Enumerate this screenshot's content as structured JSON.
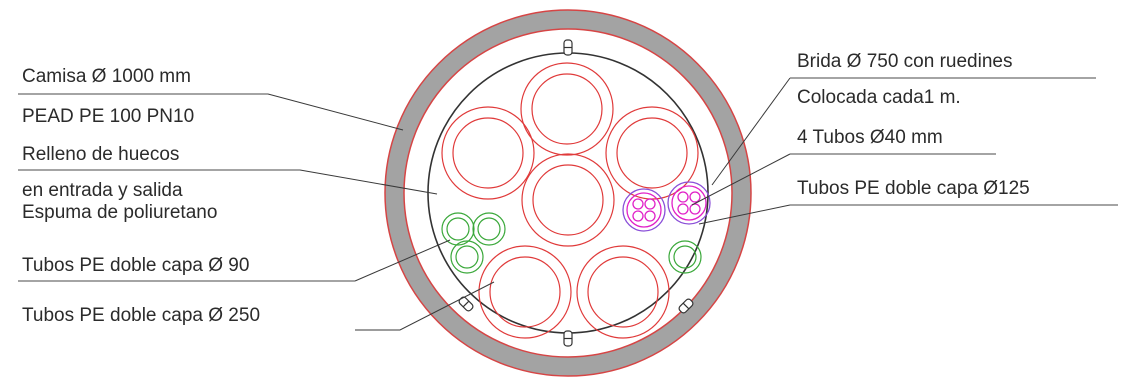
{
  "labels_left": [
    "Camisa Ø 1000 mm",
    "PEAD PE 100 PN10",
    "Relleno de huecos",
    "en entrada y salida",
    "Espuma de poliuretano",
    "Tubos PE doble capa Ø 90",
    "Tubos PE doble capa Ø 250"
  ],
  "labels_right": [
    "Brida Ø 750 con ruedines",
    "Colocada cada1 m.",
    "4 Tubos Ø40 mm",
    "Tubos PE doble capa Ø125"
  ],
  "colors": {
    "casing": "#a0a0a0",
    "casing_outline": "#d64545",
    "pipe_red": "#e03a3a",
    "pipe_green": "#3aa83a",
    "pipe_magenta": "#e020c8",
    "pipe_purple": "#8a4fd8",
    "flange": "#333333",
    "text": "#2b2b2b"
  }
}
